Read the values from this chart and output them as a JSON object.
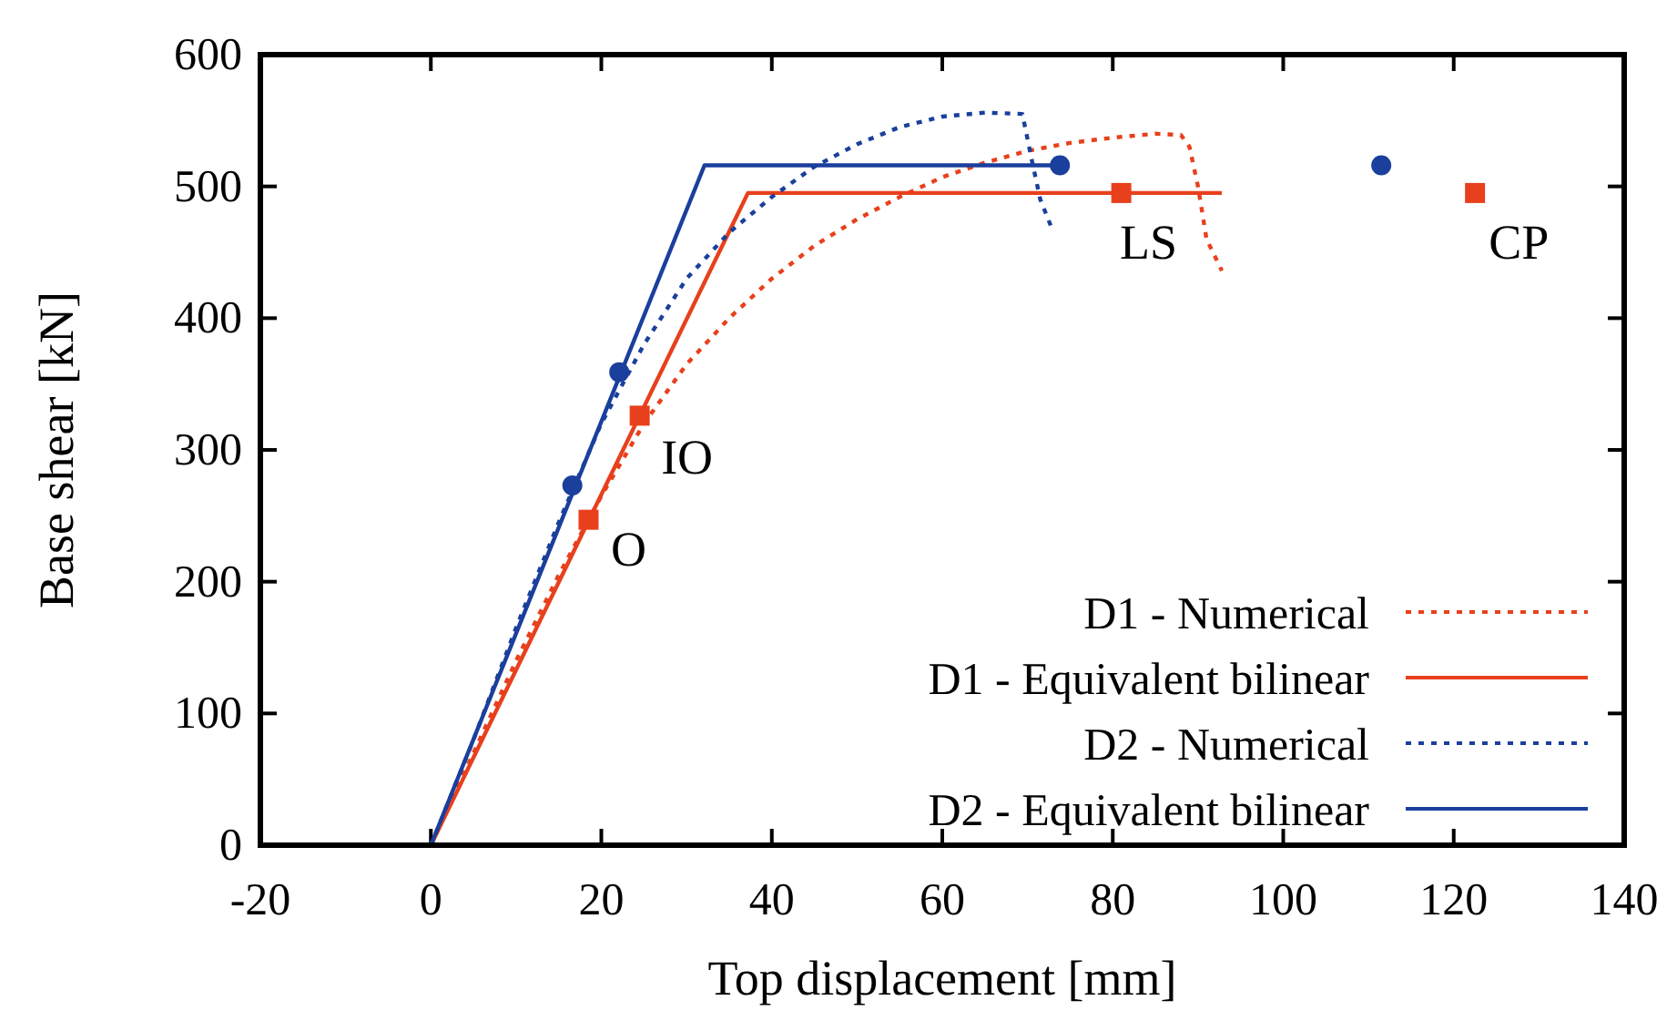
{
  "chart_data": {
    "type": "line",
    "xlabel": "Top displacement [mm]",
    "ylabel": "Base shear [kN]",
    "xlim": [
      -20,
      140
    ],
    "xticks": [
      -20,
      0,
      20,
      40,
      60,
      80,
      100,
      120,
      140
    ],
    "ylim": [
      0,
      600
    ],
    "yticks": [
      0,
      100,
      200,
      300,
      400,
      500,
      600
    ],
    "grid": false,
    "legend": "bottom right",
    "marker": "none",
    "series": [
      {
        "name": "D1 - Numerical",
        "color": "#e8401c",
        "line_style": "dotted",
        "x": [
          0,
          5,
          10,
          15,
          20,
          25,
          30,
          35,
          40,
          45,
          50,
          55,
          60,
          65,
          70,
          75,
          80,
          85,
          88,
          89,
          90,
          91,
          92.8
        ],
        "values": [
          0,
          70,
          140,
          205,
          265,
          320,
          365,
          400,
          430,
          455,
          475,
          492,
          507,
          518,
          527,
          533,
          537,
          540,
          539,
          530,
          500,
          460,
          436
        ]
      },
      {
        "name": "D1 - Equivalent bilinear",
        "color": "#e8401c",
        "line_style": "solid",
        "x": [
          0,
          37.2,
          92.8
        ],
        "values": [
          0,
          495,
          495
        ]
      },
      {
        "name": "D2 - Numerical",
        "color": "#1a3f9c",
        "line_style": "dotted",
        "x": [
          0,
          5,
          10,
          15,
          20,
          25,
          30,
          35,
          40,
          45,
          50,
          55,
          60,
          65,
          69.4,
          70.5,
          71.5,
          72.8
        ],
        "values": [
          0,
          80,
          165,
          245,
          320,
          380,
          430,
          465,
          492,
          515,
          532,
          545,
          553,
          556,
          555,
          520,
          490,
          469
        ]
      },
      {
        "name": "D2 - Equivalent bilinear",
        "color": "#1a3f9c",
        "line_style": "solid",
        "x": [
          0,
          32.1,
          73.8
        ],
        "values": [
          0,
          516,
          516
        ]
      },
      {
        "type": "scatter",
        "color": "#e8401c",
        "marker": "square",
        "x": [
          18.5,
          24.5,
          81,
          122.5
        ],
        "values": [
          247,
          326,
          495,
          495
        ]
      },
      {
        "type": "scatter",
        "color": "#1a3f9c",
        "marker": "circle",
        "x": [
          16.6,
          22.1,
          73.8,
          111.5
        ],
        "values": [
          273,
          359,
          516,
          516
        ]
      }
    ],
    "annotations": [
      {
        "text": "O",
        "x": 18.5,
        "y": 247
      },
      {
        "text": "IO",
        "x": 24.5,
        "y": 326
      },
      {
        "text": "LS",
        "x": 81,
        "y": 495
      },
      {
        "text": "CP",
        "x": 122.5,
        "y": 495
      }
    ]
  }
}
